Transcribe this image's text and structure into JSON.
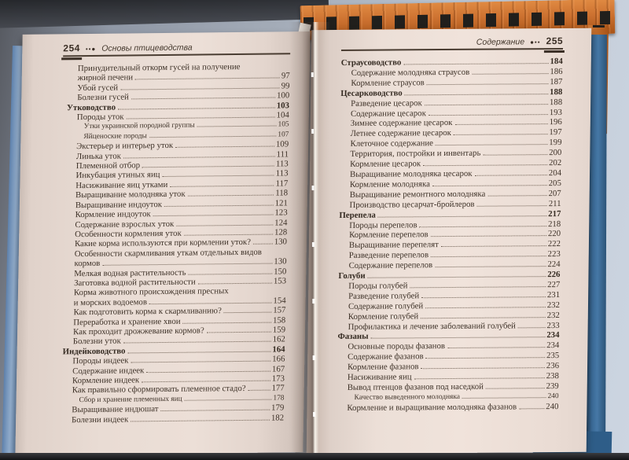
{
  "colors": {
    "paper": "#e9dcd4",
    "text": "#3e3228",
    "cover_blue": "#3a6a97",
    "cover_light_blue": "#93aecd",
    "checker_orange": "#cc7130",
    "backdrop": "#a2aab6"
  },
  "left_page": {
    "number": "254",
    "ornament": "••●",
    "running_title": "Основы птицеводства",
    "entries": [
      {
        "level": 1,
        "lines": [
          "Принудительный откорм гусей на получение",
          "жирной печени"
        ],
        "page": "97"
      },
      {
        "level": 1,
        "lines": [
          "Убой гусей"
        ],
        "page": "99"
      },
      {
        "level": 1,
        "lines": [
          "Болезни гусей"
        ],
        "page": "100"
      },
      {
        "level": 0,
        "lines": [
          "Утководство"
        ],
        "page": "103"
      },
      {
        "level": 1,
        "lines": [
          "Породы уток"
        ],
        "page": "104"
      },
      {
        "level": 2,
        "lines": [
          "Утки украинской породной группы"
        ],
        "page": "105"
      },
      {
        "level": 2,
        "lines": [
          "Яйценоские породы"
        ],
        "page": "107"
      },
      {
        "level": 1,
        "lines": [
          "Экстерьер и интерьер уток"
        ],
        "page": "109"
      },
      {
        "level": 1,
        "lines": [
          "Линька уток"
        ],
        "page": "111"
      },
      {
        "level": 1,
        "lines": [
          "Племенной отбор"
        ],
        "page": "113"
      },
      {
        "level": 1,
        "lines": [
          "Инкубация утиных яиц"
        ],
        "page": "113"
      },
      {
        "level": 1,
        "lines": [
          "Насиживание яиц утками"
        ],
        "page": "117"
      },
      {
        "level": 1,
        "lines": [
          "Выращивание молодняка уток"
        ],
        "page": "118"
      },
      {
        "level": 1,
        "lines": [
          "Выращивание индоуток"
        ],
        "page": "121"
      },
      {
        "level": 1,
        "lines": [
          "Кормление индоуток"
        ],
        "page": "123"
      },
      {
        "level": 1,
        "lines": [
          "Содержание взрослых уток"
        ],
        "page": "124"
      },
      {
        "level": 1,
        "lines": [
          "Особенности кормления уток"
        ],
        "page": "128"
      },
      {
        "level": 1,
        "lines": [
          "Какие корма используются при кормлении уток?"
        ],
        "page": "130"
      },
      {
        "level": 1,
        "lines": [
          "Особенности скармливания уткам отдельных видов",
          "кормов"
        ],
        "page": "130"
      },
      {
        "level": 1,
        "lines": [
          "Мелкая водная растительность"
        ],
        "page": "150"
      },
      {
        "level": 1,
        "lines": [
          "Заготовка водной растительности"
        ],
        "page": "153"
      },
      {
        "level": 1,
        "lines": [
          "Корма животного происхождения пресных",
          "и морских водоемов"
        ],
        "page": "154"
      },
      {
        "level": 1,
        "lines": [
          "Как подготовить корма к скармливанию?"
        ],
        "page": "157"
      },
      {
        "level": 1,
        "lines": [
          "Переработка и хранение хвои"
        ],
        "page": "158"
      },
      {
        "level": 1,
        "lines": [
          "Как проходит дрожжевание кормов?"
        ],
        "page": "159"
      },
      {
        "level": 1,
        "lines": [
          "Болезни уток"
        ],
        "page": "162"
      },
      {
        "level": 0,
        "lines": [
          "Индейководство"
        ],
        "page": "164"
      },
      {
        "level": 1,
        "lines": [
          "Породы индеек"
        ],
        "page": "166"
      },
      {
        "level": 1,
        "lines": [
          "Содержание индеек"
        ],
        "page": "167"
      },
      {
        "level": 1,
        "lines": [
          "Кормление индеек"
        ],
        "page": "173"
      },
      {
        "level": 1,
        "lines": [
          "Как правильно сформировать племенное стадо?"
        ],
        "page": "177"
      },
      {
        "level": 2,
        "lines": [
          "Сбор и хранение племенных яиц"
        ],
        "page": "178"
      },
      {
        "level": 1,
        "lines": [
          "Выращивание индюшат"
        ],
        "page": "179"
      },
      {
        "level": 1,
        "lines": [
          "Болезни индеек"
        ],
        "page": "182"
      }
    ]
  },
  "right_page": {
    "number": "255",
    "ornament": "●••",
    "running_title": "Содержание",
    "entries": [
      {
        "level": 0,
        "lines": [
          "Страусоводство"
        ],
        "page": "184"
      },
      {
        "level": 1,
        "lines": [
          "Содержание молодняка страусов"
        ],
        "page": "186"
      },
      {
        "level": 1,
        "lines": [
          "Кормление страусов"
        ],
        "page": "187"
      },
      {
        "level": 0,
        "lines": [
          "Цесарководство"
        ],
        "page": "188"
      },
      {
        "level": 1,
        "lines": [
          "Разведение цесарок"
        ],
        "page": "188"
      },
      {
        "level": 1,
        "lines": [
          "Содержание цесарок"
        ],
        "page": "193"
      },
      {
        "level": 1,
        "lines": [
          "Зимнее содержание цесарок"
        ],
        "page": "196"
      },
      {
        "level": 1,
        "lines": [
          "Летнее содержание цесарок"
        ],
        "page": "197"
      },
      {
        "level": 1,
        "lines": [
          "Клеточное содержание"
        ],
        "page": "199"
      },
      {
        "level": 1,
        "lines": [
          "Территория, постройки и инвентарь"
        ],
        "page": "200"
      },
      {
        "level": 1,
        "lines": [
          "Кормление цесарок"
        ],
        "page": "202"
      },
      {
        "level": 1,
        "lines": [
          "Выращивание молодняка цесарок"
        ],
        "page": "204"
      },
      {
        "level": 1,
        "lines": [
          "Кормление молодняка"
        ],
        "page": "205"
      },
      {
        "level": 1,
        "lines": [
          "Выращивание ремонтного молодняка"
        ],
        "page": "207"
      },
      {
        "level": 1,
        "lines": [
          "Производство цесарчат-бройлеров"
        ],
        "page": "211"
      },
      {
        "level": 0,
        "lines": [
          "Перепела"
        ],
        "page": "217"
      },
      {
        "level": 1,
        "lines": [
          "Породы перепелов"
        ],
        "page": "218"
      },
      {
        "level": 1,
        "lines": [
          "Кормление перепелов"
        ],
        "page": "220"
      },
      {
        "level": 1,
        "lines": [
          "Выращивание перепелят"
        ],
        "page": "222"
      },
      {
        "level": 1,
        "lines": [
          "Разведение перепелов"
        ],
        "page": "223"
      },
      {
        "level": 1,
        "lines": [
          "Содержание перепелов"
        ],
        "page": "224"
      },
      {
        "level": 0,
        "lines": [
          "Голуби"
        ],
        "page": "226"
      },
      {
        "level": 1,
        "lines": [
          "Породы голубей"
        ],
        "page": "227"
      },
      {
        "level": 1,
        "lines": [
          "Разведение голубей"
        ],
        "page": "231"
      },
      {
        "level": 1,
        "lines": [
          "Содержание голубей"
        ],
        "page": "232"
      },
      {
        "level": 1,
        "lines": [
          "Кормление голубей"
        ],
        "page": "232"
      },
      {
        "level": 1,
        "lines": [
          "Профилактика и лечение заболеваний голубей"
        ],
        "page": "233"
      },
      {
        "level": 0,
        "lines": [
          "Фазаны"
        ],
        "page": "234"
      },
      {
        "level": 1,
        "lines": [
          "Основные породы фазанов"
        ],
        "page": "234"
      },
      {
        "level": 1,
        "lines": [
          "Содержание фазанов"
        ],
        "page": "235"
      },
      {
        "level": 1,
        "lines": [
          "Кормление фазанов"
        ],
        "page": "236"
      },
      {
        "level": 1,
        "lines": [
          "Насиживание яиц"
        ],
        "page": "238"
      },
      {
        "level": 1,
        "lines": [
          "Вывод птенцов фазанов под наседкой"
        ],
        "page": "239"
      },
      {
        "level": 2,
        "lines": [
          "Качество выведенного молодняка"
        ],
        "page": "240"
      },
      {
        "level": 1,
        "lines": [
          "Кормление и выращивание молодняка фазанов"
        ],
        "page": "240"
      }
    ]
  }
}
